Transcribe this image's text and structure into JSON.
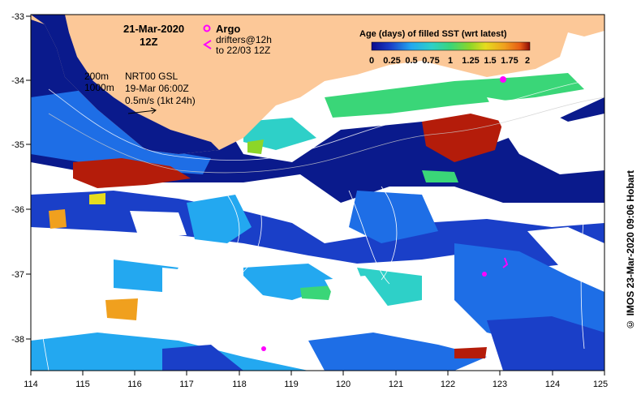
{
  "map": {
    "date_title": "21-Mar-2020",
    "time_title": "12Z",
    "legend_argo_label": "Argo",
    "legend_drifters_line1": "drifters@12h",
    "legend_drifters_line2": "to 22/03 12Z",
    "contour_label_200": "200m",
    "contour_label_1000": "1000m",
    "current_source": "NRT00 GSL",
    "current_date": "19-Mar 06:00Z",
    "current_scale": "0.5m/s (1kt 24h)",
    "colorbar_title": "Age (days) of filled SST (wrt latest)",
    "colorbar_ticks": [
      "0",
      "0.25",
      "0.5",
      "0.75",
      "1",
      "1.25",
      "1.5",
      "1.75",
      "2"
    ],
    "colorbar_colors": [
      "#0a0a8c",
      "#1a3fc8",
      "#1e6ee6",
      "#23a8f0",
      "#2ed0c8",
      "#3ad678",
      "#8cd628",
      "#e6dc1e",
      "#f0a01e",
      "#e65a14",
      "#b41c0a",
      "#8c0a05"
    ],
    "credit": "© IMOS 23-Mar-2020 09:06 Hobart",
    "x_ticks": [
      "114",
      "115",
      "116",
      "117",
      "118",
      "119",
      "120",
      "121",
      "122",
      "123",
      "124",
      "125"
    ],
    "y_ticks": [
      "-33",
      "-34",
      "-35",
      "-36",
      "-37",
      "-38"
    ],
    "land_color": "#fcc898"
  }
}
